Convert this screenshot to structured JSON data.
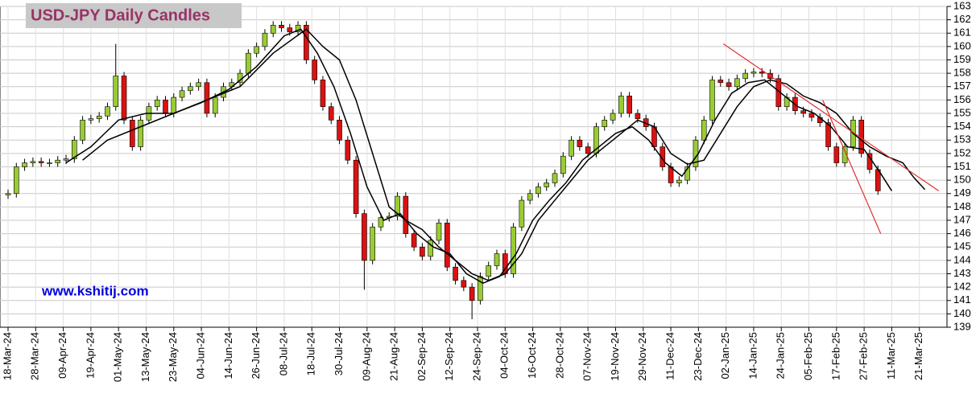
{
  "chart_data": {
    "type": "candlestick",
    "title": "USD-JPY Daily Candles",
    "watermark": "www.kshitij.com",
    "up_color": "#99cc33",
    "down_color": "#dd1111",
    "grid": true,
    "xlim": [
      0,
      340
    ],
    "ylim": [
      139,
      163
    ],
    "yticks": [
      139,
      140,
      141,
      142,
      143,
      144,
      145,
      146,
      147,
      148,
      149,
      150,
      151,
      152,
      153,
      154,
      155,
      156,
      157,
      158,
      159,
      160,
      161,
      162,
      163
    ],
    "xticks": [
      {
        "value": 0,
        "label": "18-Mar-24"
      },
      {
        "value": 10,
        "label": "28-Mar-24"
      },
      {
        "value": 20,
        "label": "09-Apr-24"
      },
      {
        "value": 30,
        "label": "19-Apr-24"
      },
      {
        "value": 40,
        "label": "01-May-24"
      },
      {
        "value": 50,
        "label": "13-May-24"
      },
      {
        "value": 60,
        "label": "23-May-24"
      },
      {
        "value": 70,
        "label": "04-Jun-24"
      },
      {
        "value": 80,
        "label": "14-Jun-24"
      },
      {
        "value": 90,
        "label": "26-Jun-24"
      },
      {
        "value": 100,
        "label": "08-Jul-24"
      },
      {
        "value": 110,
        "label": "18-Jul-24"
      },
      {
        "value": 120,
        "label": "30-Jul-24"
      },
      {
        "value": 130,
        "label": "09-Aug-24"
      },
      {
        "value": 140,
        "label": "21-Aug-24"
      },
      {
        "value": 150,
        "label": "02-Sep-24"
      },
      {
        "value": 160,
        "label": "12-Sep-24"
      },
      {
        "value": 170,
        "label": "24-Sep-24"
      },
      {
        "value": 180,
        "label": "04-Oct-24"
      },
      {
        "value": 190,
        "label": "16-Oct-24"
      },
      {
        "value": 200,
        "label": "28-Oct-24"
      },
      {
        "value": 210,
        "label": "07-Nov-24"
      },
      {
        "value": 220,
        "label": "19-Nov-24"
      },
      {
        "value": 230,
        "label": "29-Nov-24"
      },
      {
        "value": 240,
        "label": "11-Dec-24"
      },
      {
        "value": 250,
        "label": "23-Dec-24"
      },
      {
        "value": 260,
        "label": "02-Jan-25"
      },
      {
        "value": 270,
        "label": "14-Jan-25"
      },
      {
        "value": 280,
        "label": "24-Jan-25"
      },
      {
        "value": 290,
        "label": "05-Feb-25"
      },
      {
        "value": 300,
        "label": "17-Feb-25"
      },
      {
        "value": 310,
        "label": "27-Feb-25"
      },
      {
        "value": 320,
        "label": "11-Mar-25"
      },
      {
        "value": 330,
        "label": "21-Mar-25"
      }
    ],
    "x": [
      0,
      3,
      6,
      9,
      12,
      15,
      18,
      21,
      24,
      27,
      30,
      33,
      36,
      39,
      42,
      45,
      48,
      51,
      54,
      57,
      60,
      63,
      66,
      69,
      72,
      75,
      78,
      81,
      84,
      87,
      90,
      93,
      96,
      99,
      102,
      105,
      108,
      111,
      114,
      117,
      120,
      123,
      126,
      129,
      132,
      135,
      138,
      141,
      144,
      147,
      150,
      153,
      156,
      159,
      162,
      165,
      168,
      171,
      174,
      177,
      180,
      183,
      186,
      189,
      192,
      195,
      198,
      201,
      204,
      207,
      210,
      213,
      216,
      219,
      222,
      225,
      228,
      231,
      234,
      237,
      240,
      243,
      246,
      249,
      252,
      255,
      258,
      261,
      264,
      267,
      270,
      273,
      276,
      279,
      282,
      285,
      288,
      291,
      294,
      297,
      300,
      303,
      306,
      309,
      312,
      315
    ],
    "open": [
      148.9,
      149.0,
      151.0,
      151.3,
      151.4,
      151.3,
      151.3,
      151.5,
      151.6,
      153.0,
      154.5,
      154.6,
      154.8,
      155.5,
      157.8,
      154.5,
      152.5,
      154.5,
      155.5,
      156.0,
      155.0,
      156.2,
      156.7,
      157.0,
      157.3,
      155.0,
      156.2,
      157.0,
      157.3,
      158.0,
      159.5,
      160.0,
      161.0,
      161.6,
      161.4,
      161.1,
      161.6,
      159.0,
      157.5,
      155.5,
      154.5,
      153.0,
      151.5,
      147.5,
      144.0,
      146.5,
      147.2,
      147.3,
      148.8,
      146.0,
      145.0,
      144.3,
      145.5,
      146.8,
      143.5,
      142.5,
      142.0,
      141.0,
      142.8,
      143.6,
      144.5,
      143.0,
      146.5,
      148.5,
      149.0,
      149.5,
      149.8,
      150.5,
      151.8,
      153.0,
      152.5,
      152.0,
      154.0,
      154.5,
      155.0,
      156.3,
      155.0,
      154.6,
      154.0,
      152.5,
      151.0,
      149.8,
      150.0,
      151.0,
      153.0,
      154.5,
      157.5,
      157.3,
      157.0,
      157.6,
      158.0,
      158.1,
      158.0,
      157.6,
      155.5,
      156.2,
      155.2,
      155.0,
      154.7,
      154.3,
      152.5,
      151.3,
      152.5,
      154.5,
      152.0,
      150.8
    ],
    "high": [
      149.3,
      151.3,
      151.6,
      151.7,
      151.7,
      151.6,
      151.8,
      151.9,
      153.3,
      154.8,
      154.9,
      155.1,
      155.8,
      160.2,
      158.1,
      154.8,
      154.8,
      155.8,
      156.3,
      156.3,
      156.5,
      157.0,
      157.3,
      157.6,
      157.6,
      156.5,
      157.3,
      157.6,
      158.3,
      159.8,
      160.3,
      161.3,
      161.9,
      161.9,
      161.7,
      161.9,
      161.9,
      159.3,
      157.8,
      155.8,
      154.8,
      153.3,
      151.8,
      147.8,
      146.8,
      147.5,
      147.6,
      149.1,
      149.1,
      146.3,
      145.3,
      145.8,
      147.1,
      147.1,
      143.8,
      142.8,
      142.3,
      143.1,
      143.9,
      144.8,
      144.8,
      146.8,
      148.8,
      149.3,
      149.8,
      150.1,
      150.8,
      152.1,
      153.3,
      153.3,
      152.8,
      154.3,
      154.8,
      155.3,
      156.6,
      156.6,
      155.3,
      154.9,
      154.3,
      152.8,
      151.3,
      150.3,
      151.3,
      153.3,
      154.8,
      157.8,
      157.8,
      157.6,
      157.9,
      158.3,
      158.4,
      158.4,
      158.3,
      157.9,
      156.5,
      156.5,
      155.5,
      155.3,
      155.0,
      154.6,
      152.8,
      152.8,
      154.8,
      154.8,
      152.3,
      151.1
    ],
    "low": [
      148.6,
      148.7,
      150.7,
      151.0,
      151.0,
      151.0,
      151.0,
      151.2,
      151.3,
      152.7,
      154.2,
      154.3,
      154.5,
      155.2,
      154.2,
      152.2,
      152.2,
      154.2,
      155.2,
      154.7,
      154.7,
      155.9,
      156.4,
      156.7,
      154.7,
      154.7,
      155.9,
      156.7,
      157.0,
      157.7,
      159.2,
      159.7,
      160.7,
      161.1,
      160.8,
      160.8,
      158.7,
      157.2,
      155.2,
      154.2,
      152.7,
      151.2,
      147.2,
      141.8,
      143.7,
      146.2,
      146.9,
      147.0,
      145.7,
      144.7,
      144.0,
      144.0,
      145.2,
      143.2,
      142.2,
      141.7,
      139.6,
      140.7,
      142.5,
      143.3,
      142.7,
      142.7,
      146.2,
      148.2,
      148.7,
      149.2,
      149.5,
      150.2,
      151.5,
      152.2,
      151.7,
      151.7,
      153.7,
      154.2,
      154.7,
      154.7,
      154.3,
      153.7,
      152.2,
      150.7,
      149.5,
      149.5,
      149.7,
      150.7,
      152.7,
      154.2,
      157.0,
      156.7,
      156.7,
      157.3,
      157.7,
      157.7,
      157.3,
      155.2,
      155.2,
      154.9,
      154.7,
      154.4,
      154.0,
      152.2,
      151.0,
      151.0,
      152.2,
      151.7,
      150.5,
      148.9
    ],
    "close": [
      149.0,
      151.0,
      151.3,
      151.4,
      151.3,
      151.3,
      151.5,
      151.6,
      153.0,
      154.5,
      154.6,
      154.8,
      155.5,
      157.8,
      154.5,
      152.5,
      154.5,
      155.5,
      156.0,
      155.0,
      156.2,
      156.7,
      157.0,
      157.3,
      155.0,
      156.2,
      157.0,
      157.3,
      158.0,
      159.5,
      160.0,
      161.0,
      161.6,
      161.4,
      161.1,
      161.6,
      159.0,
      157.5,
      155.5,
      154.5,
      153.0,
      151.5,
      147.5,
      144.0,
      146.5,
      147.2,
      147.3,
      148.8,
      146.0,
      145.0,
      144.3,
      145.5,
      146.8,
      143.5,
      142.5,
      142.0,
      141.0,
      142.8,
      143.6,
      144.5,
      143.0,
      146.5,
      148.5,
      149.0,
      149.5,
      149.8,
      150.5,
      151.8,
      153.0,
      152.5,
      152.0,
      154.0,
      154.5,
      155.0,
      156.3,
      155.0,
      154.6,
      154.0,
      152.5,
      151.0,
      149.8,
      150.0,
      151.0,
      153.0,
      154.5,
      157.5,
      157.3,
      157.0,
      157.6,
      158.0,
      158.1,
      158.0,
      157.6,
      155.5,
      156.2,
      155.2,
      155.0,
      154.7,
      154.3,
      152.5,
      151.3,
      152.5,
      154.5,
      152.0,
      150.8,
      149.2
    ],
    "lines": [
      {
        "color": "#000000",
        "x": [
          21,
          30,
          40,
          50,
          60,
          70,
          80,
          90,
          100,
          106,
          112,
          118,
          124,
          130,
          136,
          142,
          148,
          154,
          160,
          166,
          172,
          178,
          184,
          190,
          196,
          202,
          208,
          214,
          220,
          226,
          232,
          238,
          244,
          250,
          256,
          262,
          268,
          274,
          280,
          286,
          292,
          298,
          304,
          310,
          316,
          320
        ],
        "values": [
          151.3,
          152.5,
          154.5,
          155,
          155,
          155.8,
          156.8,
          158.5,
          160.8,
          161.3,
          159.5,
          157,
          153.5,
          149.5,
          147,
          147.5,
          146,
          145,
          144.5,
          143,
          142.3,
          142.8,
          144.5,
          147,
          148.5,
          149.8,
          151.5,
          152.5,
          153.5,
          154,
          153,
          151.3,
          150.3,
          152,
          154.5,
          156.5,
          157.3,
          157.5,
          156.5,
          155.5,
          155,
          154,
          152.5,
          152.3,
          150.5,
          149.2
        ]
      },
      {
        "color": "#000000",
        "x": [
          27,
          36,
          48,
          60,
          72,
          84,
          96,
          108,
          114,
          120,
          126,
          132,
          138,
          144,
          150,
          156,
          162,
          168,
          174,
          180,
          186,
          192,
          198,
          204,
          210,
          216,
          222,
          228,
          234,
          240,
          246,
          252,
          258,
          264,
          270,
          276,
          282,
          288,
          294,
          300,
          306,
          312,
          318,
          324,
          328,
          332
        ],
        "values": [
          151.5,
          153,
          154,
          155,
          156,
          157,
          159.5,
          161.3,
          160,
          159,
          156,
          152,
          148,
          147,
          146.3,
          145,
          144,
          143,
          142.5,
          143,
          144.5,
          147,
          148.5,
          150,
          151.5,
          152.5,
          153.5,
          154.5,
          154,
          152,
          151.2,
          151.5,
          153.5,
          155.5,
          157,
          157.5,
          157.2,
          156.3,
          155.8,
          155,
          153.5,
          152.5,
          151.8,
          151.3,
          150.2,
          149.3
        ]
      }
    ],
    "trendlines": [
      {
        "color": "#e03030",
        "x": [
          259,
          337
        ],
        "values": [
          160.2,
          149.2
        ]
      },
      {
        "color": "#e03030",
        "x": [
          295,
          316
        ],
        "values": [
          156.0,
          146.0
        ]
      }
    ]
  }
}
